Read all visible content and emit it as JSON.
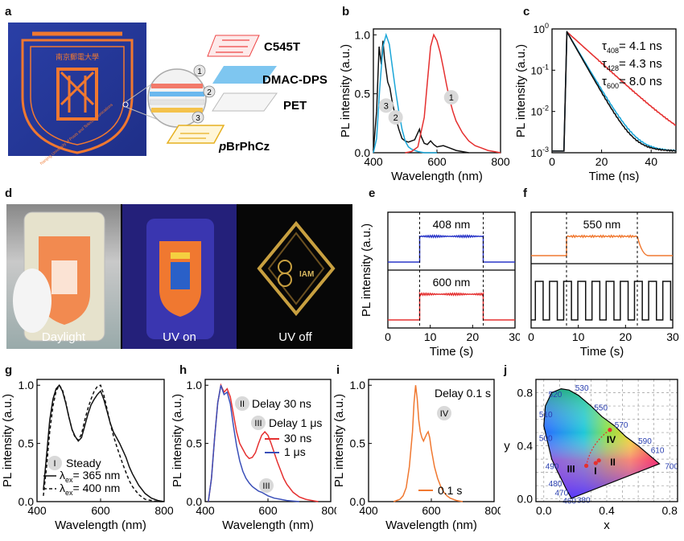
{
  "panels": {
    "a": {
      "label": "a",
      "layers": [
        "C545T",
        "DMAC-DPS",
        "PET",
        "pBrPhCz"
      ],
      "layer_numbers": [
        "1",
        "2",
        "3"
      ],
      "emblem_text": "Nanjing University of Posts and Telecommunications"
    },
    "b": {
      "label": "b"
    },
    "c": {
      "label": "c"
    },
    "d": {
      "label": "d",
      "captions": [
        "Daylight",
        "UV on",
        "UV off"
      ],
      "logo_text": "IAM"
    },
    "e": {
      "label": "e"
    },
    "f": {
      "label": "f"
    },
    "g": {
      "label": "g"
    },
    "h": {
      "label": "h"
    },
    "i": {
      "label": "i"
    },
    "j": {
      "label": "j"
    }
  },
  "chart_data": [
    {
      "id": "b",
      "type": "line",
      "xlabel": "Wavelength (nm)",
      "ylabel": "PL intensity (a.u.)",
      "xlim": [
        400,
        800
      ],
      "ylim": [
        0,
        1.05
      ],
      "xticks": [
        400,
        600,
        800
      ],
      "yticks": [
        0.0,
        0.5,
        1.0
      ],
      "series": [
        {
          "name": "3",
          "color": "#111111",
          "x": [
            400,
            410,
            418,
            425,
            430,
            435,
            440,
            445,
            452,
            460,
            470,
            480,
            490,
            500,
            510,
            520,
            530,
            540,
            545,
            550,
            560,
            570,
            580,
            590,
            600,
            620,
            640,
            660,
            700
          ],
          "y": [
            0.02,
            0.35,
            0.9,
            0.75,
            0.95,
            0.8,
            0.7,
            0.6,
            0.55,
            0.42,
            0.3,
            0.2,
            0.12,
            0.1,
            0.09,
            0.1,
            0.11,
            0.17,
            0.2,
            0.14,
            0.08,
            0.07,
            0.1,
            0.07,
            0.05,
            0.06,
            0.04,
            0.02,
            0.0
          ]
        },
        {
          "name": "2",
          "color": "#1ba6d8",
          "x": [
            400,
            410,
            420,
            430,
            440,
            450,
            460,
            470,
            480,
            490,
            500,
            510,
            520,
            530,
            540,
            560,
            580,
            600
          ],
          "y": [
            0.0,
            0.12,
            0.55,
            0.9,
            1.0,
            0.92,
            0.72,
            0.52,
            0.35,
            0.2,
            0.1,
            0.05,
            0.03,
            0.02,
            0.01,
            0.0,
            0.0,
            0.0
          ]
        },
        {
          "name": "1",
          "color": "#e53030",
          "x": [
            500,
            520,
            540,
            560,
            570,
            580,
            590,
            600,
            610,
            620,
            630,
            640,
            650,
            660,
            680,
            700,
            720,
            740,
            760,
            800
          ],
          "y": [
            0.0,
            0.01,
            0.05,
            0.3,
            0.6,
            0.9,
            1.0,
            0.95,
            0.85,
            0.72,
            0.58,
            0.45,
            0.35,
            0.27,
            0.17,
            0.1,
            0.06,
            0.04,
            0.02,
            0.0
          ]
        }
      ]
    },
    {
      "id": "c",
      "type": "line",
      "xlabel": "Time (ns)",
      "ylabel": "PL intensity (a.u.)",
      "xlim": [
        0,
        50
      ],
      "ylim": [
        0.001,
        1
      ],
      "yscale": "log",
      "xticks": [
        0,
        20,
        40
      ],
      "yticks": [
        "10^0",
        "10^-1",
        "10^-2",
        "10^-3"
      ],
      "annotations": [
        {
          "sym": "τ",
          "sub": "408",
          "val": "= 4.1 ns"
        },
        {
          "sym": "τ",
          "sub": "428",
          "val": "= 4.3 ns"
        },
        {
          "sym": "τ",
          "sub": "600",
          "val": "= 8.0 ns"
        }
      ],
      "series": [
        {
          "color": "#e53030",
          "tau": 8.0
        },
        {
          "color": "#1ba6d8",
          "tau": 4.3
        },
        {
          "color": "#111111",
          "tau": 4.1
        }
      ]
    },
    {
      "id": "e",
      "type": "line",
      "xlabel": "Time (s)",
      "ylabel": "PL intensity (a.u.)",
      "xlim": [
        0,
        30
      ],
      "xticks": [
        0,
        10,
        20,
        30
      ],
      "annotations": [
        "408 nm",
        "600 nm"
      ],
      "on_off": [
        7.5,
        22.5
      ],
      "series": [
        {
          "name": "408 nm",
          "color": "#2a36c8"
        },
        {
          "name": "600 nm",
          "color": "#e53030"
        }
      ]
    },
    {
      "id": "f",
      "type": "line",
      "xlabel": "Time (s)",
      "xlim": [
        0,
        30
      ],
      "xticks": [
        0,
        10,
        20,
        30
      ],
      "annotations": [
        "550 nm"
      ],
      "on_off": [
        7.5,
        22.5
      ],
      "pulse_period": 3.0,
      "series": [
        {
          "name": "550 nm",
          "color": "#f07830"
        },
        {
          "color": "#111111"
        }
      ]
    },
    {
      "id": "g",
      "type": "line",
      "xlabel": "Wavelength (nm)",
      "ylabel": "PL intensity (a.u.)",
      "xlim": [
        400,
        800
      ],
      "ylim": [
        0,
        1.05
      ],
      "xticks": [
        400,
        600,
        800
      ],
      "yticks": [
        0.0,
        0.5,
        1.0
      ],
      "annotations": [
        "Steady"
      ],
      "marker": "I",
      "series": [
        {
          "name": "λex= 365 nm",
          "sym": "λ",
          "sub": "ex",
          "val": "= 365 nm",
          "style": "solid",
          "x": [
            420,
            430,
            440,
            450,
            460,
            470,
            480,
            490,
            500,
            510,
            520,
            530,
            540,
            550,
            560,
            570,
            580,
            590,
            600,
            610,
            620,
            630,
            640,
            650,
            660,
            670,
            680,
            690,
            700,
            720,
            740,
            760,
            780,
            800
          ],
          "y": [
            0.1,
            0.4,
            0.7,
            0.88,
            0.97,
            1.0,
            0.95,
            0.85,
            0.73,
            0.62,
            0.56,
            0.52,
            0.55,
            0.65,
            0.75,
            0.83,
            0.88,
            0.92,
            0.95,
            0.88,
            0.78,
            0.68,
            0.6,
            0.55,
            0.5,
            0.44,
            0.38,
            0.3,
            0.24,
            0.14,
            0.07,
            0.03,
            0.01,
            0.0
          ]
        },
        {
          "name": "λex= 400 nm",
          "sym": "λ",
          "sub": "ex",
          "val": "= 400 nm",
          "style": "dashed",
          "x": [
            420,
            430,
            440,
            450,
            460,
            470,
            480,
            490,
            500,
            510,
            520,
            530,
            540,
            550,
            560,
            570,
            580,
            590,
            600,
            610,
            620,
            630,
            640,
            650,
            660,
            670,
            680,
            690,
            700,
            720,
            740,
            760,
            780,
            800
          ],
          "y": [
            0.05,
            0.3,
            0.6,
            0.82,
            0.95,
            1.0,
            0.96,
            0.86,
            0.73,
            0.62,
            0.55,
            0.53,
            0.58,
            0.7,
            0.8,
            0.88,
            0.95,
            0.99,
            1.0,
            0.92,
            0.8,
            0.68,
            0.57,
            0.48,
            0.4,
            0.32,
            0.25,
            0.18,
            0.13,
            0.06,
            0.02,
            0.01,
            0.0,
            0.0
          ]
        }
      ]
    },
    {
      "id": "h",
      "type": "line",
      "xlabel": "Wavelength (nm)",
      "ylabel": "PL intensity (a.u.)",
      "xlim": [
        400,
        800
      ],
      "ylim": [
        0,
        1.05
      ],
      "xticks": [
        400,
        600,
        800
      ],
      "yticks": [
        0.0,
        0.5,
        1.0
      ],
      "annotations": [
        {
          "marker": "II",
          "text": "Delay 30 ns"
        },
        {
          "marker": "III",
          "text": "Delay 1 μs"
        },
        {
          "marker": "III",
          "text": ""
        }
      ],
      "series": [
        {
          "name": "30 ns",
          "color": "#e53030",
          "x": [
            410,
            420,
            430,
            440,
            450,
            460,
            470,
            480,
            490,
            500,
            510,
            520,
            530,
            540,
            550,
            560,
            570,
            580,
            590,
            600,
            610,
            620,
            630,
            640,
            650,
            660,
            680,
            700,
            720,
            740,
            760
          ],
          "y": [
            0.0,
            0.2,
            0.55,
            0.85,
            1.0,
            0.94,
            0.97,
            0.9,
            0.75,
            0.6,
            0.5,
            0.45,
            0.4,
            0.37,
            0.38,
            0.42,
            0.5,
            0.57,
            0.6,
            0.57,
            0.5,
            0.42,
            0.34,
            0.27,
            0.2,
            0.15,
            0.08,
            0.04,
            0.02,
            0.01,
            0.0
          ]
        },
        {
          "name": "1 μs",
          "color": "#3a4fb8",
          "x": [
            410,
            420,
            430,
            440,
            450,
            460,
            470,
            480,
            490,
            500,
            510,
            520,
            530,
            540,
            550,
            560,
            570,
            580,
            600,
            620,
            640,
            660,
            700
          ],
          "y": [
            0.0,
            0.2,
            0.55,
            0.85,
            1.0,
            0.92,
            0.94,
            0.84,
            0.65,
            0.48,
            0.35,
            0.26,
            0.2,
            0.16,
            0.13,
            0.11,
            0.09,
            0.08,
            0.05,
            0.03,
            0.02,
            0.01,
            0.0
          ]
        }
      ]
    },
    {
      "id": "i",
      "type": "line",
      "xlabel": "Wavelength (nm)",
      "ylabel": "PL intensity (a.u.)",
      "xlim": [
        400,
        800
      ],
      "ylim": [
        0,
        1.05
      ],
      "xticks": [
        400,
        600,
        800
      ],
      "yticks": [
        0.0,
        0.5,
        1.0
      ],
      "annotations": [
        {
          "marker": "IV",
          "text": "Delay 0.1 s"
        }
      ],
      "series": [
        {
          "name": "0.1 s",
          "color": "#f07830",
          "x": [
            480,
            500,
            510,
            520,
            530,
            540,
            545,
            550,
            555,
            560,
            565,
            570,
            575,
            580,
            585,
            590,
            595,
            600,
            610,
            620,
            630,
            640,
            650,
            660,
            680,
            700
          ],
          "y": [
            0.0,
            0.02,
            0.05,
            0.12,
            0.3,
            0.6,
            0.85,
            1.0,
            0.88,
            0.7,
            0.6,
            0.55,
            0.52,
            0.55,
            0.58,
            0.6,
            0.55,
            0.45,
            0.3,
            0.2,
            0.13,
            0.08,
            0.05,
            0.03,
            0.01,
            0.0
          ]
        }
      ]
    },
    {
      "id": "j",
      "type": "scatter",
      "xlabel": "x",
      "ylabel": "y",
      "xlim": [
        -0.05,
        0.85
      ],
      "ylim": [
        -0.02,
        0.9
      ],
      "xticks": [
        0.0,
        0.4,
        0.8
      ],
      "yticks": [
        0.0,
        0.4,
        0.8
      ],
      "wavelength_labels": [
        "380",
        "460",
        "470",
        "480",
        "490",
        "500",
        "510",
        "520",
        "530",
        "550",
        "570",
        "590",
        "610",
        "700"
      ],
      "points": [
        {
          "name": "I",
          "x": 0.33,
          "y": 0.27
        },
        {
          "name": "II",
          "x": 0.35,
          "y": 0.29
        },
        {
          "name": "III",
          "x": 0.27,
          "y": 0.25
        },
        {
          "name": "IV",
          "x": 0.42,
          "y": 0.52
        }
      ]
    }
  ]
}
